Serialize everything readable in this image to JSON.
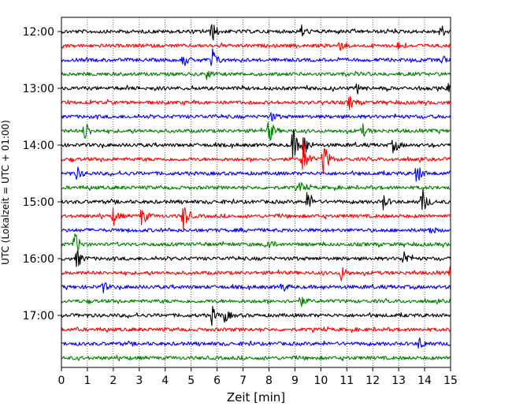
{
  "chart_data": {
    "type": "line",
    "subtype": "helicorder",
    "xlabel": "Zeit  [min]",
    "ylabel": "UTC (Lokalzeit = UTC + 01:00)",
    "xlim": [
      0,
      15
    ],
    "x_ticks": [
      "0",
      "1",
      "2",
      "3",
      "4",
      "5",
      "6",
      "7",
      "8",
      "9",
      "10",
      "11",
      "12",
      "13",
      "14",
      "15"
    ],
    "y_ticks": [
      "12:00",
      "13:00",
      "14:00",
      "15:00",
      "16:00",
      "17:00"
    ],
    "grid": "vertical dotted at each minute",
    "trace_minutes": 15,
    "trace_colors": [
      "#000000",
      "#ff0000",
      "#0000ff",
      "#008000"
    ],
    "traces": [
      {
        "start": "12:00",
        "color": "#000000",
        "events": [
          {
            "t": 5.8,
            "amp": 1.0
          },
          {
            "t": 9.2,
            "amp": 0.8
          },
          {
            "t": 14.6,
            "amp": 0.6
          }
        ]
      },
      {
        "start": "12:15",
        "color": "#ff0000",
        "events": [
          {
            "t": 10.7,
            "amp": 0.5
          },
          {
            "t": 13.0,
            "amp": 0.4
          }
        ]
      },
      {
        "start": "12:30",
        "color": "#0000ff",
        "events": [
          {
            "t": 4.7,
            "amp": 0.6
          },
          {
            "t": 5.8,
            "amp": 1.2
          },
          {
            "t": 14.7,
            "amp": 0.4
          }
        ]
      },
      {
        "start": "12:45",
        "color": "#008000",
        "events": [
          {
            "t": 5.6,
            "amp": 0.4
          }
        ]
      },
      {
        "start": "13:00",
        "color": "#000000",
        "events": [
          {
            "t": 11.4,
            "amp": 0.5
          },
          {
            "t": 14.9,
            "amp": 0.4
          }
        ]
      },
      {
        "start": "13:15",
        "color": "#ff0000",
        "events": [
          {
            "t": 11.1,
            "amp": 0.6
          }
        ]
      },
      {
        "start": "13:30",
        "color": "#0000ff",
        "events": [
          {
            "t": 8.1,
            "amp": 0.4
          }
        ]
      },
      {
        "start": "13:45",
        "color": "#008000",
        "events": [
          {
            "t": 0.9,
            "amp": 1.1
          },
          {
            "t": 8.0,
            "amp": 1.2
          },
          {
            "t": 11.6,
            "amp": 0.6
          }
        ]
      },
      {
        "start": "14:00",
        "color": "#000000",
        "events": [
          {
            "t": 8.9,
            "amp": 1.8
          },
          {
            "t": 9.3,
            "amp": 1.5
          },
          {
            "t": 12.8,
            "amp": 0.8
          }
        ]
      },
      {
        "start": "14:15",
        "color": "#ff0000",
        "events": [
          {
            "t": 9.3,
            "amp": 2.0
          },
          {
            "t": 10.1,
            "amp": 1.8
          }
        ]
      },
      {
        "start": "14:30",
        "color": "#0000ff",
        "events": [
          {
            "t": 0.6,
            "amp": 0.6
          },
          {
            "t": 13.7,
            "amp": 1.0
          }
        ]
      },
      {
        "start": "14:45",
        "color": "#008000",
        "events": [
          {
            "t": 9.2,
            "amp": 0.5
          }
        ]
      },
      {
        "start": "15:00",
        "color": "#000000",
        "events": [
          {
            "t": 9.5,
            "amp": 1.2
          },
          {
            "t": 12.4,
            "amp": 0.7
          },
          {
            "t": 13.9,
            "amp": 1.3
          }
        ]
      },
      {
        "start": "15:15",
        "color": "#ff0000",
        "events": [
          {
            "t": 2.0,
            "amp": 0.8
          },
          {
            "t": 3.1,
            "amp": 1.0
          },
          {
            "t": 4.7,
            "amp": 1.4
          }
        ]
      },
      {
        "start": "15:30",
        "color": "#0000ff",
        "events": [
          {
            "t": 14.2,
            "amp": 0.4
          }
        ]
      },
      {
        "start": "15:45",
        "color": "#008000",
        "events": [
          {
            "t": 0.5,
            "amp": 1.2
          },
          {
            "t": 7.9,
            "amp": 0.8
          }
        ]
      },
      {
        "start": "16:00",
        "color": "#000000",
        "events": [
          {
            "t": 0.6,
            "amp": 0.9
          },
          {
            "t": 13.2,
            "amp": 0.8
          }
        ]
      },
      {
        "start": "16:15",
        "color": "#ff0000",
        "events": [
          {
            "t": 10.8,
            "amp": 0.7
          },
          {
            "t": 15.0,
            "amp": 0.5
          }
        ]
      },
      {
        "start": "16:30",
        "color": "#0000ff",
        "events": [
          {
            "t": 1.6,
            "amp": 0.5
          },
          {
            "t": 8.5,
            "amp": 0.5
          }
        ]
      },
      {
        "start": "16:45",
        "color": "#008000",
        "events": [
          {
            "t": 9.2,
            "amp": 0.5
          }
        ]
      },
      {
        "start": "17:00",
        "color": "#000000",
        "events": [
          {
            "t": 5.8,
            "amp": 0.8
          },
          {
            "t": 6.3,
            "amp": 0.6
          }
        ]
      },
      {
        "start": "17:15",
        "color": "#ff0000",
        "events": []
      },
      {
        "start": "17:30",
        "color": "#0000ff",
        "events": [
          {
            "t": 13.8,
            "amp": 0.6
          }
        ]
      },
      {
        "start": "17:45",
        "color": "#008000",
        "events": []
      }
    ]
  }
}
